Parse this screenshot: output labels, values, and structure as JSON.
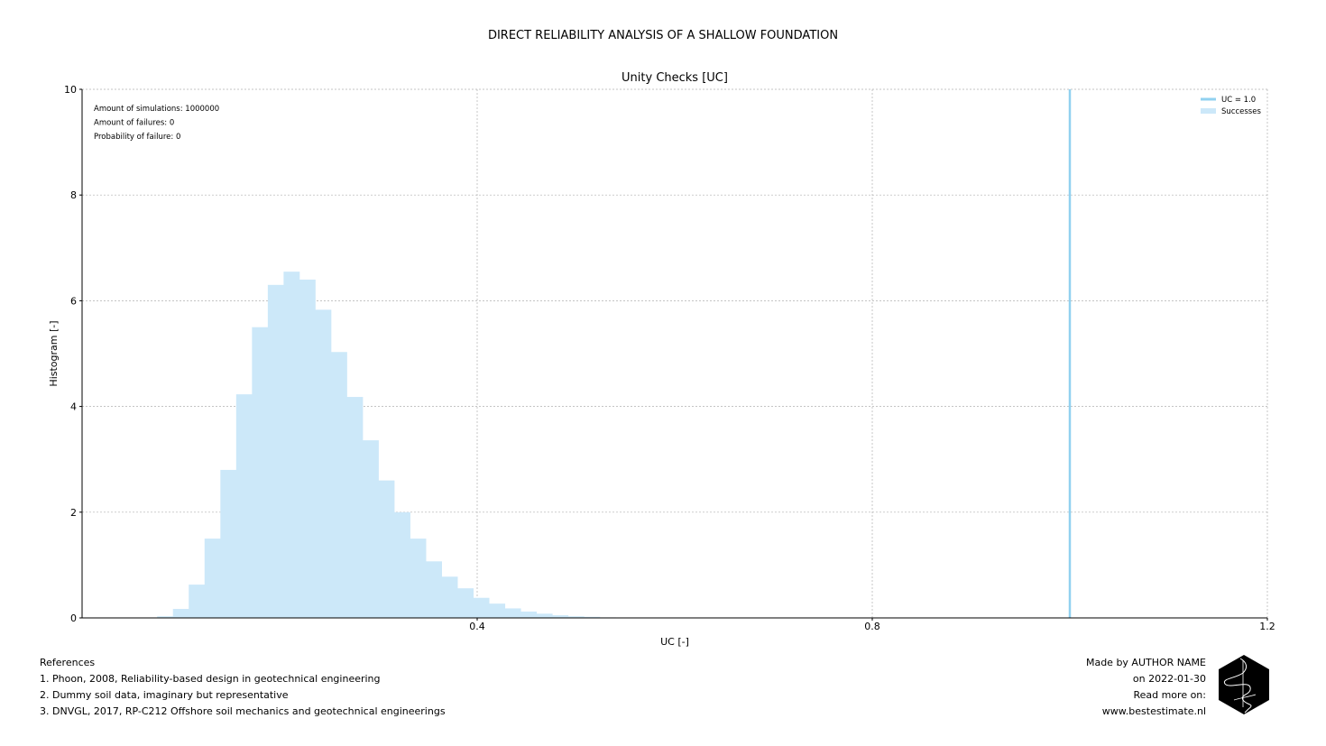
{
  "suptitle": "DIRECT RELIABILITY ANALYSIS OF A SHALLOW FOUNDATION",
  "chart_data": {
    "type": "bar",
    "title": "Unity Checks [UC]",
    "xlabel": "UC [-]",
    "ylabel": "Histogram [-]",
    "xlim": [
      0,
      1.2
    ],
    "ylim": [
      0,
      10
    ],
    "xticks": [
      "0.4",
      "0.8",
      "1.2"
    ],
    "xtick_values": [
      0.4,
      0.8,
      1.2
    ],
    "yticks": [
      "0",
      "2",
      "4",
      "6",
      "8",
      "10"
    ],
    "ytick_values": [
      0,
      2,
      4,
      6,
      8,
      10
    ],
    "grid": true,
    "bin_width": 0.016,
    "bins_start": [
      0.076,
      0.092,
      0.108,
      0.124,
      0.14,
      0.156,
      0.172,
      0.188,
      0.204,
      0.22,
      0.236,
      0.252,
      0.268,
      0.284,
      0.3,
      0.316,
      0.332,
      0.348,
      0.364,
      0.38,
      0.396,
      0.412,
      0.428,
      0.444,
      0.46,
      0.476,
      0.492,
      0.508,
      0.524
    ],
    "series": [
      {
        "name": "Successes",
        "color": "#cce8f9",
        "values": [
          0.03,
          0.17,
          0.63,
          1.5,
          2.8,
          4.23,
          5.5,
          6.3,
          6.55,
          6.4,
          5.83,
          5.03,
          4.18,
          3.36,
          2.6,
          2.0,
          1.5,
          1.07,
          0.78,
          0.56,
          0.38,
          0.27,
          0.18,
          0.12,
          0.08,
          0.05,
          0.03,
          0.02,
          0.01
        ]
      }
    ],
    "reference_line": {
      "name": "UC = 1.0",
      "x": 1.0,
      "color": "#91d1f0"
    },
    "legend_position": "top-right",
    "legend": [
      "UC = 1.0",
      "Successes"
    ],
    "annotations": [
      "Amount of simulations: 1000000",
      "Amount of failures: 0",
      "Probability of failure: 0"
    ]
  },
  "references": {
    "heading": "References",
    "items": [
      "1. Phoon, 2008, Reliability-based design in geotechnical engineering",
      "2. Dummy soil data, imaginary but representative",
      "3. DNVGL, 2017, RP-C212 Offshore soil mechanics and geotechnical engineerings"
    ]
  },
  "credits": {
    "made_by": "Made by AUTHOR NAME",
    "date": "on 2022-01-30",
    "read_more": "Read more on:",
    "url": "www.bestestimate.nl"
  }
}
